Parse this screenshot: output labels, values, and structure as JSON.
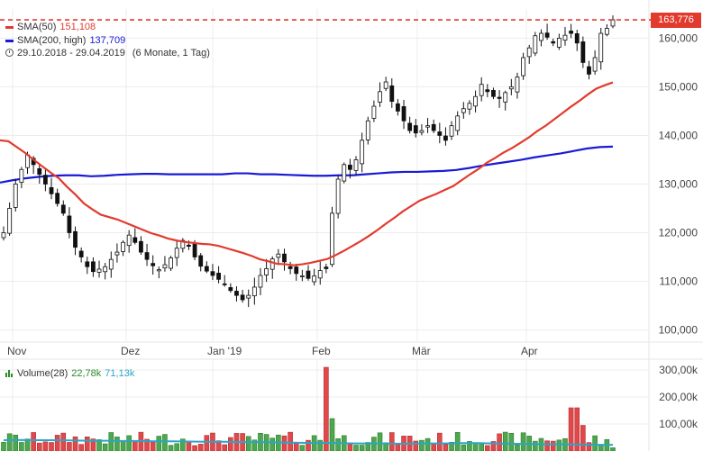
{
  "legend": {
    "sma50": {
      "label": "SMA(50)",
      "value": "151,108",
      "color": "#e23b2e"
    },
    "sma200": {
      "label": "SMA(200, high)",
      "value": "137,709",
      "color": "#1a1ad6"
    },
    "range": "29.10.2018 - 29.04.2019",
    "range_detail": "(6 Monate, 1 Tag)",
    "volume": {
      "label": "Volume(28)",
      "value1": "22,78k",
      "value2": "71,13k",
      "color1": "#2b8a2b",
      "color2": "#2aa5c8"
    },
    "icons": [
      "clock-icon"
    ]
  },
  "last_price_label": "163,776",
  "chart_data": [
    {
      "type": "candlestick",
      "x_tick_labels": [
        "Nov",
        "Dez",
        "Jan '19",
        "Feb",
        "Mär",
        "Apr"
      ],
      "y_tick_labels": [
        "100,000",
        "110,000",
        "120,000",
        "130,000",
        "140,000",
        "150,000",
        "160,000"
      ],
      "y_ticks": [
        100,
        110,
        120,
        130,
        140,
        150,
        160
      ],
      "ylim": [
        97.5,
        166
      ],
      "grid": true,
      "last_price": 163.776,
      "close_approx": [
        120,
        125,
        130,
        133,
        136,
        134,
        132,
        130,
        128,
        126,
        124,
        120,
        117,
        115,
        113,
        112,
        112.5,
        113,
        114.5,
        116,
        118,
        119.5,
        118,
        116,
        114.5,
        113.2,
        112.4,
        113.4,
        114.8,
        116.8,
        118.4,
        117.2,
        115,
        113.1,
        112.1,
        111.2,
        110.4,
        109.4,
        108.1,
        107.1,
        106.2,
        107.1,
        108.8,
        111.2,
        112.6,
        114.6,
        115.6,
        114,
        112.6,
        111.6,
        111.1,
        110.6,
        111.1,
        112.2,
        112.6,
        124,
        131,
        134,
        133,
        135,
        139,
        143,
        146,
        149,
        151,
        147,
        145,
        143,
        141,
        140.5,
        141,
        142,
        141,
        140,
        139,
        142,
        144,
        145.5,
        146.6,
        148,
        150.5,
        149,
        148,
        147.6,
        148.8,
        150,
        152,
        156,
        158,
        160.5,
        161,
        160.2,
        159,
        160,
        160.6,
        161,
        159,
        155,
        152.6,
        156,
        161,
        162,
        163.776
      ],
      "sma50": [
        139,
        138.8,
        137.6,
        136.4,
        135,
        133.7,
        132.4,
        131.2,
        129.4,
        127.8,
        126,
        124.8,
        123.7,
        123.2,
        122.7,
        122,
        121.3,
        120.6,
        119.9,
        119.4,
        118.8,
        118.4,
        118.1,
        117.9,
        117.7,
        117.6,
        117.3,
        116.8,
        116.3,
        115.8,
        115.2,
        114.5,
        114.1,
        113.6,
        113.5,
        113.3,
        113.5,
        113.8,
        114.2,
        114.6,
        115.4,
        116.3,
        117.3,
        118.3,
        119.4,
        120.6,
        121.9,
        123.1,
        124.4,
        125.5,
        126.6,
        127.3,
        128,
        128.8,
        129.6,
        130.8,
        132,
        133.1,
        134.4,
        135.4,
        136.5,
        137.4,
        138.5,
        139.6,
        140.9,
        142,
        143.3,
        144.6,
        145.9,
        147.1,
        148.4,
        149.6,
        150.3,
        150.9
      ],
      "sma200": [
        130.3,
        130.8,
        131.2,
        131.5,
        131.7,
        131.8,
        131.8,
        131.6,
        131.7,
        131.9,
        132,
        132.1,
        132.1,
        132,
        132,
        132,
        132,
        132,
        132.2,
        132.2,
        132,
        132,
        131.9,
        131.8,
        131.7,
        131.7,
        131.8,
        131.8,
        132,
        132.2,
        132.4,
        132.5,
        132.5,
        132.6,
        132.7,
        132.9,
        133.3,
        133.8,
        134.2,
        134.6,
        135,
        135.5,
        135.9,
        136.3,
        136.8,
        137.3,
        137.6,
        137.7
      ],
      "volume_tick_labels": [
        "100,00k",
        "200,00k",
        "300,00k"
      ],
      "volume_ticks": [
        100,
        200,
        300
      ],
      "volume_avg": [
        40,
        41,
        40,
        40,
        39,
        38,
        38,
        37,
        37,
        36,
        36,
        35,
        34,
        34,
        33,
        33,
        32,
        31,
        30,
        30,
        29,
        28,
        28,
        27,
        27,
        28,
        28,
        29,
        29,
        28,
        27,
        26,
        25,
        25,
        24,
        23,
        22.78
      ]
    }
  ]
}
